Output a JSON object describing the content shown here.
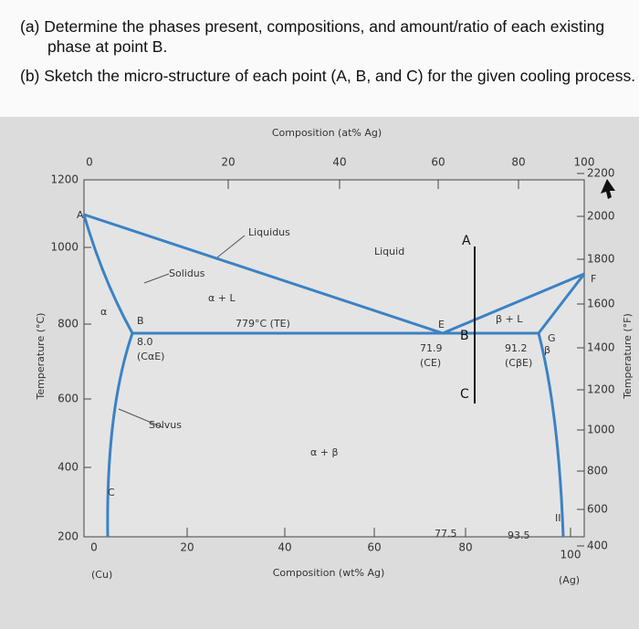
{
  "question": {
    "parts": [
      "(a) Determine the phases present, compositions, and amount/ratio of each existing phase at point B.",
      "(b) Sketch the micro-structure of each point (A, B, and C) for the given cooling process."
    ]
  },
  "diagram": {
    "top_axis_title": "Composition (at% Ag)",
    "bottom_axis_title": "Composition (wt% Ag)",
    "left_axis_title": "Temperature (°C)",
    "right_axis_title": "Temperature (°F)",
    "top_ticks": [
      "0",
      "20",
      "40",
      "60",
      "80",
      "100"
    ],
    "bottom_ticks": [
      "0",
      "20",
      "40",
      "60",
      "80",
      "100"
    ],
    "left_ticks": [
      "1200",
      "1000",
      "800",
      "600",
      "400",
      "200"
    ],
    "right_ticks": [
      "2200",
      "2000",
      "1800",
      "1600",
      "1400",
      "1200",
      "1000",
      "800",
      "600",
      "400"
    ],
    "labels": [
      "A",
      "Liquidus",
      "Liquid",
      "Solidus",
      "α + L",
      "779°C (TE)",
      "E",
      "β + L",
      "G",
      "β",
      "F",
      "B",
      "8.0",
      "(CαE)",
      "71.9",
      "(CE)",
      "91.2",
      "(CβE)",
      "Solvus",
      "α + β",
      "α",
      "C",
      "II",
      "77.5",
      "93.5",
      "(Cu)",
      "(Ag)"
    ],
    "path_points": [
      "A",
      "B",
      "C"
    ]
  }
}
